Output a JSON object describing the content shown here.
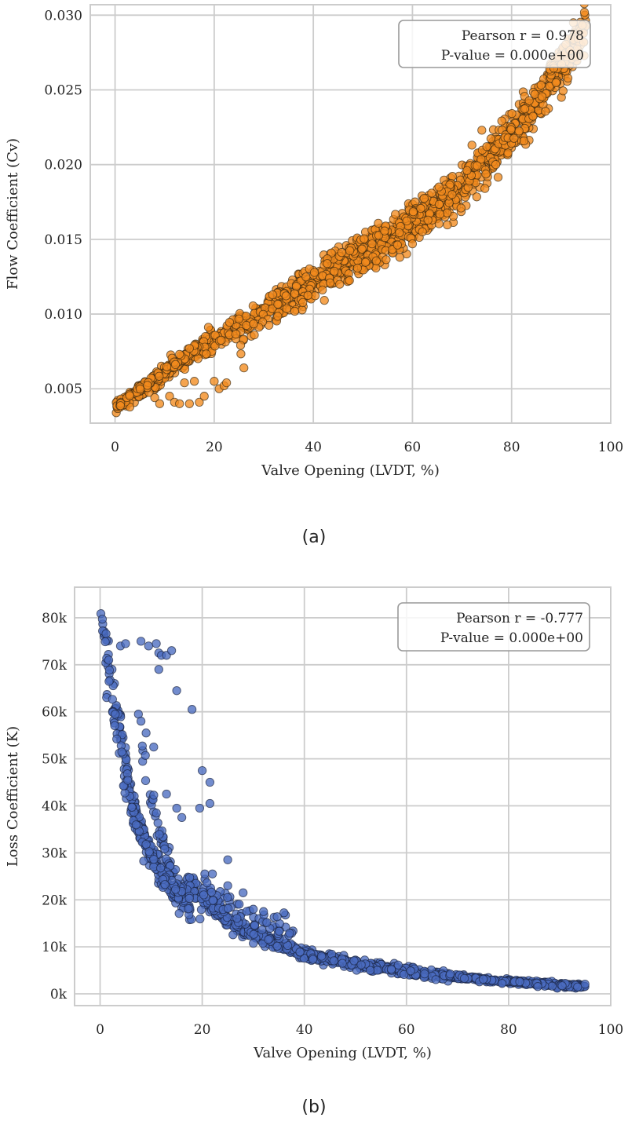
{
  "captions": {
    "a": "(a)",
    "b": "(b)"
  },
  "chart_data": [
    {
      "id": "a",
      "type": "scatter",
      "title": "",
      "xlabel": "Valve Opening (LVDT, %)",
      "ylabel": "Flow Coefficient (Cv)",
      "xlim": [
        -5,
        100
      ],
      "ylim": [
        0.0027,
        0.0307
      ],
      "xticks": [
        0,
        20,
        40,
        60,
        80,
        100
      ],
      "xtick_labels": [
        "0",
        "20",
        "40",
        "60",
        "80",
        "100"
      ],
      "yticks": [
        0.005,
        0.01,
        0.015,
        0.02,
        0.025,
        0.03
      ],
      "ytick_labels": [
        "0.005",
        "0.010",
        "0.015",
        "0.020",
        "0.025",
        "0.030"
      ],
      "grid": true,
      "marker_color": "#f28a1e",
      "marker_edge": "#3a2a10",
      "annotation": {
        "line1": "Pearson r = 0.978",
        "line2": "P-value = 0.000e+00",
        "position": "upper right"
      },
      "trend_points": [
        [
          0,
          0.0038
        ],
        [
          5,
          0.0048
        ],
        [
          10,
          0.006
        ],
        [
          15,
          0.0072
        ],
        [
          20,
          0.0082
        ],
        [
          25,
          0.0092
        ],
        [
          30,
          0.0102
        ],
        [
          35,
          0.0112
        ],
        [
          40,
          0.0121
        ],
        [
          45,
          0.0131
        ],
        [
          50,
          0.014
        ],
        [
          55,
          0.015
        ],
        [
          60,
          0.016
        ],
        [
          65,
          0.0171
        ],
        [
          70,
          0.0185
        ],
        [
          75,
          0.0202
        ],
        [
          80,
          0.022
        ],
        [
          85,
          0.0243
        ],
        [
          90,
          0.0265
        ],
        [
          95,
          0.0292
        ]
      ],
      "outliers": [
        [
          8,
          0.0044
        ],
        [
          9,
          0.004
        ],
        [
          11,
          0.0045
        ],
        [
          12,
          0.0041
        ],
        [
          13,
          0.004
        ],
        [
          14,
          0.0054
        ],
        [
          15,
          0.004
        ],
        [
          16,
          0.0055
        ],
        [
          17,
          0.0041
        ],
        [
          18,
          0.0045
        ],
        [
          20,
          0.0055
        ],
        [
          21,
          0.005
        ],
        [
          22,
          0.0052
        ],
        [
          22.5,
          0.0054
        ],
        [
          26,
          0.0064
        ],
        [
          16,
          0.0079
        ],
        [
          15,
          0.0077
        ],
        [
          13,
          0.0073
        ],
        [
          62,
          0.0155
        ],
        [
          60,
          0.0147
        ],
        [
          72,
          0.0213
        ],
        [
          74,
          0.0223
        ],
        [
          75,
          0.0212
        ],
        [
          71,
          0.0196
        ],
        [
          68,
          0.018
        ]
      ]
    },
    {
      "id": "b",
      "type": "scatter",
      "title": "",
      "xlabel": "Valve Opening (LVDT, %)",
      "ylabel": "Loss Coefficient (K)",
      "xlim": [
        -5,
        100
      ],
      "ylim": [
        -2500,
        86500
      ],
      "xticks": [
        0,
        20,
        40,
        60,
        80,
        100
      ],
      "xtick_labels": [
        "0",
        "20",
        "40",
        "60",
        "80",
        "100"
      ],
      "yticks": [
        0,
        10000,
        20000,
        30000,
        40000,
        50000,
        60000,
        70000,
        80000
      ],
      "ytick_labels": [
        "0k",
        "10k",
        "20k",
        "30k",
        "40k",
        "50k",
        "60k",
        "70k",
        "80k"
      ],
      "grid": true,
      "marker_color": "#4a6bc0",
      "marker_edge": "#1a2340",
      "annotation": {
        "line1": "Pearson r = -0.777",
        "line2": "P-value = 0.000e+00",
        "position": "upper right"
      },
      "trend_points": [
        [
          0,
          82000
        ],
        [
          1,
          77000
        ],
        [
          2,
          70000
        ],
        [
          3,
          63000
        ],
        [
          4,
          56000
        ],
        [
          5,
          49000
        ],
        [
          6,
          43000
        ],
        [
          7,
          38000
        ],
        [
          8,
          34000
        ],
        [
          10,
          30000
        ],
        [
          12,
          26000
        ],
        [
          14,
          22000
        ],
        [
          16,
          20000
        ],
        [
          18,
          23000
        ],
        [
          20,
          20000
        ],
        [
          25,
          15500
        ],
        [
          30,
          12500
        ],
        [
          35,
          10500
        ],
        [
          40,
          8500
        ],
        [
          45,
          7500
        ],
        [
          50,
          6300
        ],
        [
          55,
          5500
        ],
        [
          60,
          4800
        ],
        [
          65,
          4200
        ],
        [
          70,
          3600
        ],
        [
          75,
          3100
        ],
        [
          80,
          2600
        ],
        [
          85,
          2200
        ],
        [
          90,
          1900
        ],
        [
          95,
          1500
        ]
      ],
      "outliers": [
        [
          8,
          75000
        ],
        [
          9.5,
          74000
        ],
        [
          11,
          74500
        ],
        [
          11.5,
          72500
        ],
        [
          12,
          72000
        ],
        [
          13,
          72000
        ],
        [
          14,
          73000
        ],
        [
          11.5,
          69000
        ],
        [
          15,
          64500
        ],
        [
          18,
          60500
        ],
        [
          4,
          74000
        ],
        [
          5,
          74500
        ],
        [
          7.5,
          59500
        ],
        [
          8,
          58000
        ],
        [
          9,
          55500
        ],
        [
          10.5,
          52500
        ],
        [
          20,
          47500
        ],
        [
          21.5,
          45000
        ],
        [
          13,
          42500
        ],
        [
          15,
          39500
        ],
        [
          16,
          37500
        ],
        [
          19.5,
          39500
        ],
        [
          21.5,
          40500
        ],
        [
          25,
          28500
        ],
        [
          20.5,
          25500
        ],
        [
          22,
          25500
        ],
        [
          25,
          23000
        ],
        [
          28,
          21500
        ],
        [
          30,
          18000
        ],
        [
          32,
          17500
        ]
      ]
    }
  ]
}
